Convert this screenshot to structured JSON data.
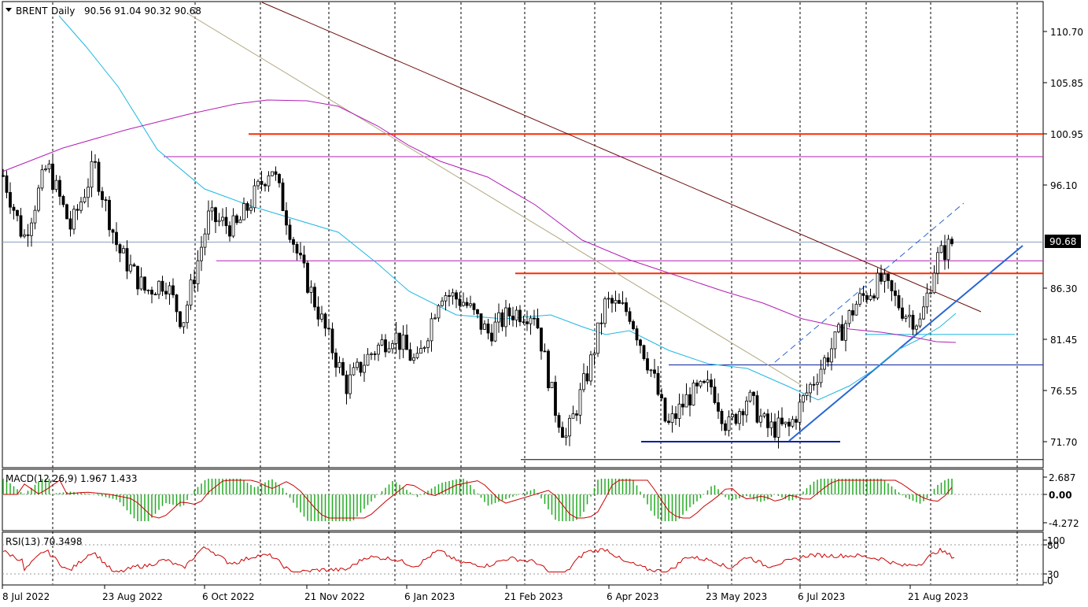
{
  "header": {
    "symbol": "BRENT",
    "timeframe": "Daily",
    "ohlc": "90.56 91.04 90.32 90.68"
  },
  "colors": {
    "bull_body": "#ffffff",
    "bear_body": "#000000",
    "candle_outline": "#000000",
    "ma_fast": "#1fb7e0",
    "ma_slow": "#b21eb5",
    "resistance": "#ff2a00",
    "support": "#0b1fa0",
    "trendline": "#2a66d4",
    "downtrend": "#6b0a0a",
    "channel": "#b0a880",
    "macd_hist": "#22aa22",
    "macd_signal": "#cc0000",
    "rsi_line": "#cc0000"
  },
  "chart_data": {
    "type": "candlestick",
    "price_axis": {
      "ticks": [
        "110.70",
        "105.85",
        "100.95",
        "96.10",
        "86.30",
        "81.45",
        "76.55",
        "71.70"
      ],
      "current_price": "90.68",
      "ylim": [
        69.9,
        114.7
      ]
    },
    "time_axis": {
      "labels": [
        "8 Jul 2022",
        "23 Aug 2022",
        "6 Oct 2022",
        "21 Nov 2022",
        "6 Jan 2023",
        "21 Feb 2023",
        "6 Apr 2023",
        "23 May 2023",
        "6 Jul 2023",
        "21 Aug 2023"
      ]
    },
    "horizontal_levels": [
      {
        "price": 100.95,
        "kind": "resistance"
      },
      {
        "price": 98.8,
        "kind": "ma_level"
      },
      {
        "price": 88.9,
        "kind": "ma_level"
      },
      {
        "price": 87.7,
        "kind": "resistance"
      },
      {
        "price": 81.9,
        "kind": "ma_level"
      },
      {
        "price": 79.0,
        "kind": "ma_level"
      },
      {
        "price": 71.7,
        "kind": "support"
      },
      {
        "price": 70.0,
        "kind": "neutral"
      }
    ],
    "macd": {
      "label": "MACD(12,26,9) 1.967 1.433",
      "ticks": [
        "2.687",
        "0.00",
        "-4.272"
      ],
      "range": [
        -4.272,
        2.687
      ]
    },
    "rsi": {
      "label": "RSI(13) 70.3498",
      "ticks": [
        "100",
        "80",
        "30",
        "0"
      ],
      "range": [
        0,
        100
      ]
    }
  }
}
